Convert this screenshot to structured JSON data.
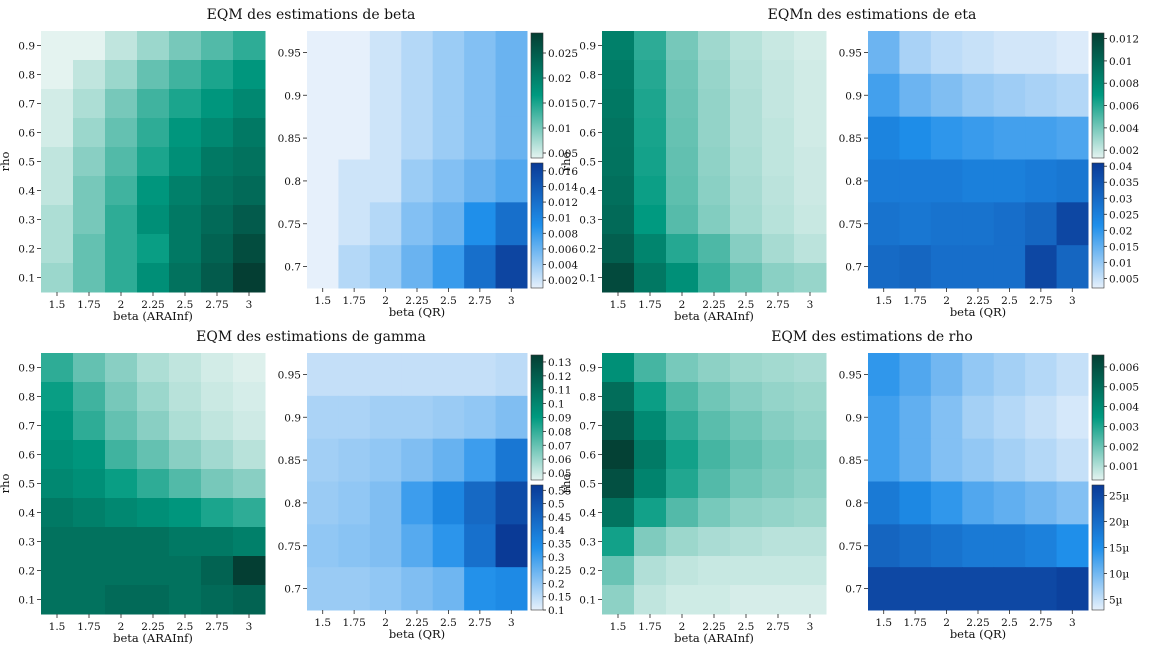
{
  "colors": {
    "green_low": "#e4f3f0",
    "green_high": "#043e33",
    "green_mid": "#009a80",
    "blue_low": "#e6f0fb",
    "blue_mid": "#1f8fea",
    "blue_high": "#0a3a96"
  },
  "chart_data": [
    {
      "type": "heatmap",
      "title": "EQM des estimations de beta",
      "left": {
        "xlabel": "beta (ARAInf)",
        "ylabel": "rho",
        "xticks": [
          "1.5",
          "1.75",
          "2",
          "2.25",
          "2.5",
          "2.75",
          "3"
        ],
        "yticks": [
          "0.9",
          "0.8",
          "0.7",
          "0.6",
          "0.5",
          "0.4",
          "0.3",
          "0.2",
          "0.1"
        ],
        "values": [
          [
            0.003,
            0.004,
            0.006,
            0.008,
            0.01,
            0.012,
            0.014
          ],
          [
            0.004,
            0.006,
            0.008,
            0.011,
            0.013,
            0.015,
            0.017
          ],
          [
            0.005,
            0.007,
            0.01,
            0.013,
            0.015,
            0.017,
            0.019
          ],
          [
            0.005,
            0.008,
            0.011,
            0.014,
            0.017,
            0.019,
            0.021
          ],
          [
            0.006,
            0.009,
            0.012,
            0.015,
            0.018,
            0.021,
            0.022
          ],
          [
            0.006,
            0.01,
            0.013,
            0.017,
            0.02,
            0.022,
            0.023
          ],
          [
            0.007,
            0.01,
            0.014,
            0.018,
            0.021,
            0.023,
            0.025
          ],
          [
            0.007,
            0.011,
            0.014,
            0.016,
            0.021,
            0.024,
            0.027
          ],
          [
            0.008,
            0.011,
            0.014,
            0.018,
            0.022,
            0.025,
            0.029
          ]
        ],
        "colorscale": "green",
        "range": [
          0.004,
          0.029
        ]
      },
      "right": {
        "xlabel": "beta (QR)",
        "xticks": [
          "1.5",
          "1.75",
          "2",
          "2.25",
          "2.5",
          "2.75",
          "3"
        ],
        "yticks": [
          "0.95",
          "0.9",
          "0.85",
          "0.8",
          "0.75",
          "0.7"
        ],
        "values": [
          [
            0.001,
            0.001,
            0.002,
            0.003,
            0.004,
            0.005,
            0.006
          ],
          [
            0.001,
            0.001,
            0.002,
            0.003,
            0.004,
            0.005,
            0.006
          ],
          [
            0.001,
            0.001,
            0.002,
            0.003,
            0.004,
            0.005,
            0.006
          ],
          [
            0.001,
            0.002,
            0.002,
            0.004,
            0.005,
            0.006,
            0.007
          ],
          [
            0.001,
            0.002,
            0.003,
            0.005,
            0.006,
            0.009,
            0.012
          ],
          [
            0.001,
            0.003,
            0.004,
            0.006,
            0.008,
            0.012,
            0.016
          ]
        ],
        "colorscale": "blue",
        "range": [
          0.001,
          0.017
        ]
      },
      "colorbar_top": {
        "ticks": [
          "0.025",
          "0.02",
          "0.015",
          "0.01",
          "0.005"
        ],
        "min": 0.004,
        "max": 0.029
      },
      "colorbar_bottom": {
        "ticks": [
          "0.016",
          "0.014",
          "0.012",
          "0.01",
          "0.008",
          "0.006",
          "0.004",
          "0.002"
        ],
        "min": 0.001,
        "max": 0.017
      }
    },
    {
      "type": "heatmap",
      "title": "EQMn des estimations de eta",
      "left": {
        "xlabel": "beta (ARAInf)",
        "ylabel": "rho",
        "xticks": [
          "1.5",
          "1.75",
          "2",
          "2.25",
          "2.5",
          "2.75",
          "3"
        ],
        "yticks": [
          "0.9",
          "0.8",
          "0.7",
          "0.6",
          "0.5",
          "0.4",
          "0.3",
          "0.2",
          "0.1"
        ],
        "values": [
          [
            0.0085,
            0.0058,
            0.004,
            0.003,
            0.0024,
            0.002,
            0.0017
          ],
          [
            0.0088,
            0.006,
            0.0042,
            0.0032,
            0.0025,
            0.0021,
            0.0018
          ],
          [
            0.009,
            0.0062,
            0.0043,
            0.0033,
            0.0026,
            0.0021,
            0.0018
          ],
          [
            0.0092,
            0.0063,
            0.0044,
            0.0033,
            0.0026,
            0.0022,
            0.0018
          ],
          [
            0.0093,
            0.0064,
            0.0045,
            0.0034,
            0.0027,
            0.0022,
            0.0019
          ],
          [
            0.0095,
            0.0066,
            0.0046,
            0.0035,
            0.0028,
            0.0023,
            0.0019
          ],
          [
            0.0098,
            0.0069,
            0.0048,
            0.0037,
            0.0029,
            0.0024,
            0.002
          ],
          [
            0.0105,
            0.0082,
            0.006,
            0.005,
            0.0036,
            0.0028,
            0.0023
          ],
          [
            0.0118,
            0.009,
            0.0075,
            0.0055,
            0.0044,
            0.0035,
            0.0032
          ]
        ],
        "colorscale": "green",
        "range": [
          0.0013,
          0.0125
        ]
      },
      "right": {
        "xlabel": "beta (QR)",
        "xticks": [
          "1.5",
          "1.75",
          "2",
          "2.25",
          "2.5",
          "2.75",
          "3"
        ],
        "yticks": [
          "0.95",
          "0.9",
          "0.85",
          "0.8",
          "0.75",
          "0.7"
        ],
        "values": [
          [
            0.014,
            0.008,
            0.006,
            0.005,
            0.004,
            0.004,
            0.003
          ],
          [
            0.018,
            0.014,
            0.012,
            0.01,
            0.009,
            0.008,
            0.007
          ],
          [
            0.024,
            0.022,
            0.02,
            0.019,
            0.018,
            0.018,
            0.017
          ],
          [
            0.026,
            0.026,
            0.026,
            0.025,
            0.025,
            0.026,
            0.027
          ],
          [
            0.028,
            0.027,
            0.028,
            0.028,
            0.029,
            0.031,
            0.038
          ],
          [
            0.03,
            0.031,
            0.029,
            0.029,
            0.029,
            0.038,
            0.031
          ]
        ],
        "colorscale": "blue",
        "range": [
          0.002,
          0.041
        ]
      },
      "colorbar_top": {
        "ticks": [
          "0.012",
          "0.01",
          "0.008",
          "0.006",
          "0.004",
          "0.002"
        ],
        "min": 0.0013,
        "max": 0.0125
      },
      "colorbar_bottom": {
        "ticks": [
          "0.04",
          "0.035",
          "0.03",
          "0.025",
          "0.02",
          "0.015",
          "0.01",
          "0.005"
        ],
        "min": 0.002,
        "max": 0.041
      }
    },
    {
      "type": "heatmap",
      "title": "EQM des estimations de gamma",
      "left": {
        "xlabel": "beta (ARAInf)",
        "ylabel": "rho",
        "xticks": [
          "1.5",
          "1.75",
          "2",
          "2.25",
          "2.5",
          "2.75",
          "3"
        ],
        "yticks": [
          "0.9",
          "0.8",
          "0.7",
          "0.6",
          "0.5",
          "0.4",
          "0.3",
          "0.2",
          "0.1"
        ],
        "values": [
          [
            0.06,
            0.045,
            0.035,
            0.025,
            0.02,
            0.015,
            0.012
          ],
          [
            0.07,
            0.055,
            0.04,
            0.03,
            0.022,
            0.017,
            0.014
          ],
          [
            0.075,
            0.06,
            0.045,
            0.035,
            0.025,
            0.02,
            0.016
          ],
          [
            0.08,
            0.075,
            0.055,
            0.045,
            0.035,
            0.028,
            0.022
          ],
          [
            0.085,
            0.08,
            0.07,
            0.06,
            0.05,
            0.04,
            0.035
          ],
          [
            0.095,
            0.09,
            0.085,
            0.08,
            0.075,
            0.065,
            0.06
          ],
          [
            0.1,
            0.1,
            0.1,
            0.1,
            0.095,
            0.095,
            0.09
          ],
          [
            0.1,
            0.1,
            0.1,
            0.1,
            0.1,
            0.11,
            0.135
          ],
          [
            0.1,
            0.1,
            0.105,
            0.105,
            0.1,
            0.105,
            0.11
          ]
        ],
        "colorscale": "green",
        "range": [
          0.01,
          0.135
        ]
      },
      "right": {
        "xlabel": "beta (QR)",
        "xticks": [
          "1.5",
          "1.75",
          "2",
          "2.25",
          "2.5",
          "2.75",
          "3"
        ],
        "yticks": [
          "0.95",
          "0.9",
          "0.85",
          "0.8",
          "0.75",
          "0.7"
        ],
        "values": [
          [
            0.14,
            0.14,
            0.14,
            0.14,
            0.14,
            0.14,
            0.15
          ],
          [
            0.17,
            0.17,
            0.18,
            0.18,
            0.19,
            0.2,
            0.22
          ],
          [
            0.18,
            0.19,
            0.2,
            0.22,
            0.25,
            0.3,
            0.4
          ],
          [
            0.19,
            0.2,
            0.22,
            0.3,
            0.36,
            0.44,
            0.52
          ],
          [
            0.2,
            0.21,
            0.22,
            0.27,
            0.32,
            0.42,
            0.57
          ],
          [
            0.19,
            0.19,
            0.2,
            0.22,
            0.24,
            0.33,
            0.35
          ]
        ],
        "colorscale": "blue",
        "range": [
          0.1,
          0.57
        ]
      },
      "colorbar_top": {
        "ticks": [
          "0.13",
          "0.12",
          "0.11",
          "0.1",
          "0.09",
          "0.08",
          "0.07",
          "0.06",
          "0.05"
        ],
        "min": 0.045,
        "max": 0.135
      },
      "colorbar_bottom": {
        "ticks": [
          "0.55",
          "0.5",
          "0.45",
          "0.4",
          "0.35",
          "0.3",
          "0.25",
          "0.2",
          "0.15",
          "0.1"
        ],
        "min": 0.1,
        "max": 0.57
      }
    },
    {
      "type": "heatmap",
      "title": "EQM des estimations de rho",
      "left": {
        "xlabel": "beta (ARAInf)",
        "ylabel": "rho",
        "xticks": [
          "1.5",
          "1.75",
          "2",
          "2.25",
          "2.5",
          "2.75",
          "3"
        ],
        "yticks": [
          "0.9",
          "0.8",
          "0.7",
          "0.6",
          "0.5",
          "0.4",
          "0.3",
          "0.2",
          "0.1"
        ],
        "values": [
          [
            0.0038,
            0.0025,
            0.0018,
            0.0015,
            0.0013,
            0.0012,
            0.0011
          ],
          [
            0.005,
            0.0033,
            0.0024,
            0.0019,
            0.0016,
            0.0014,
            0.0013
          ],
          [
            0.0057,
            0.004,
            0.0028,
            0.0022,
            0.0019,
            0.0016,
            0.0014
          ],
          [
            0.0065,
            0.0045,
            0.0032,
            0.0025,
            0.0021,
            0.0018,
            0.0016
          ],
          [
            0.006,
            0.0042,
            0.003,
            0.0023,
            0.0019,
            0.0017,
            0.0015
          ],
          [
            0.0048,
            0.0032,
            0.0023,
            0.0018,
            0.0015,
            0.0014,
            0.0013
          ],
          [
            0.0032,
            0.0017,
            0.0013,
            0.0011,
            0.001,
            0.0009,
            0.0009
          ],
          [
            0.002,
            0.001,
            0.0008,
            0.0007,
            0.0007,
            0.0007,
            0.0007
          ],
          [
            0.0015,
            0.0008,
            0.0006,
            0.0006,
            0.0005,
            0.0005,
            0.0005
          ]
        ],
        "colorscale": "green",
        "range": [
          0.0003,
          0.0066
        ]
      },
      "right": {
        "xlabel": "beta (QR)",
        "xticks": [
          "1.5",
          "1.75",
          "2",
          "2.25",
          "2.5",
          "2.75",
          "3"
        ],
        "yticks": [
          "0.95",
          "0.9",
          "0.85",
          "0.8",
          "0.75",
          "0.7"
        ],
        "values": [
          [
            14,
            12,
            10,
            8,
            7,
            6,
            5
          ],
          [
            13,
            11,
            9,
            7,
            6,
            5,
            4
          ],
          [
            13,
            11,
            9,
            8,
            7,
            6,
            5
          ],
          [
            18,
            16,
            14,
            12,
            11,
            10,
            9
          ],
          [
            21,
            20,
            19,
            18,
            18,
            17,
            15
          ],
          [
            25,
            25,
            25,
            25,
            25,
            25,
            26
          ]
        ],
        "colorscale": "blue",
        "range": [
          3,
          27
        ]
      },
      "colorbar_top": {
        "ticks": [
          "0.006",
          "0.005",
          "0.004",
          "0.003",
          "0.002",
          "0.001"
        ],
        "min": 0.0003,
        "max": 0.0066
      },
      "colorbar_bottom": {
        "ticks": [
          "25µ",
          "20µ",
          "15µ",
          "10µ",
          "5µ"
        ],
        "tick_values": [
          25,
          20,
          15,
          10,
          5
        ],
        "min": 3,
        "max": 27
      }
    }
  ]
}
